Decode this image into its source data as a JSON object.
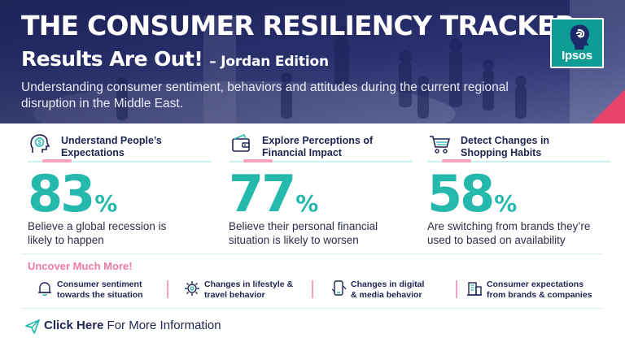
{
  "header": {
    "title_line1": "THE CONSUMER RESILIENCY TRACKER",
    "title_line2": "Results Are Out!",
    "edition": "– Jordan Edition",
    "subtitle": "Understanding consumer sentiment, behaviors and attitudes during the current regional disruption in the Middle East."
  },
  "logo": {
    "text": "Ipsos",
    "color": "#0e9c95"
  },
  "colors": {
    "accent_teal": "#25b8ad",
    "accent_pink": "#f07aa0",
    "navy": "#1f2450"
  },
  "stats": [
    {
      "icon": "head-dollar-icon",
      "heading": "Understand People’s Expectations",
      "value": "83",
      "unit": "%",
      "description": "Believe a global recession is likely to happen"
    },
    {
      "icon": "wallet-icon",
      "heading": "Explore Perceptions of Financial Impact",
      "value": "77",
      "unit": "%",
      "description": "Believe their personal financial situation is likely to worsen"
    },
    {
      "icon": "shopping-cart-icon",
      "heading": "Detect Changes in Shopping Habits",
      "value": "58",
      "unit": "%",
      "description": "Are switching from brands they’re used to based on availability"
    }
  ],
  "uncover": {
    "title": "Uncover Much More!",
    "topics": [
      {
        "icon": "bell-icon",
        "label": "Consumer sentiment towards the situation"
      },
      {
        "icon": "gear-icon",
        "label": "Changes in lifestyle & travel behavior"
      },
      {
        "icon": "phone-icon",
        "label": "Changes in digital & media behavior"
      },
      {
        "icon": "building-icon",
        "label": "Consumer expectations from brands & companies"
      }
    ]
  },
  "cta": {
    "bold": "Click Here",
    "rest": "For More Information"
  }
}
